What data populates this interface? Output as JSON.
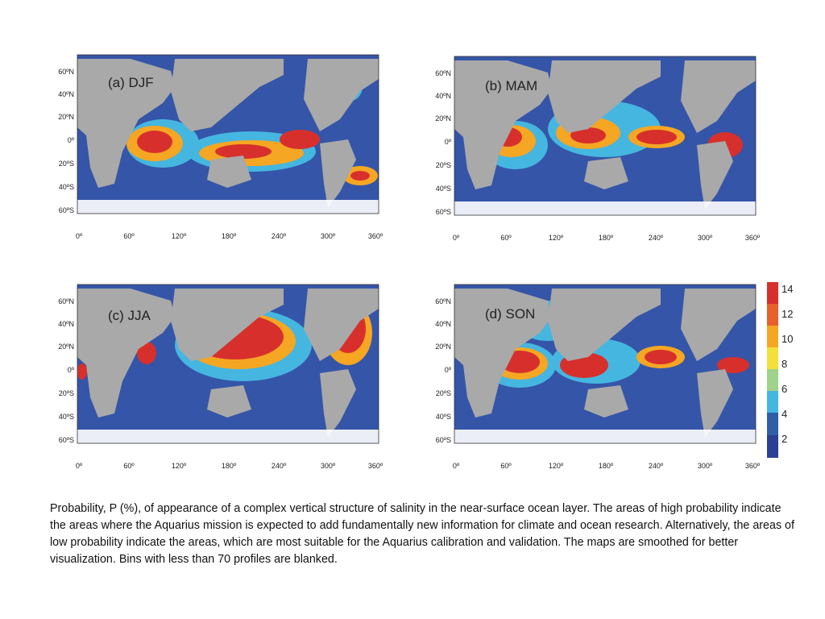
{
  "panels": [
    {
      "id": "djf",
      "title": "(a) DJF",
      "lat_labels": [
        "60ºN",
        "40ºN",
        "20ºN",
        "0º",
        "20ºS",
        "40ºS",
        "60ºS"
      ],
      "lon_labels": [
        "0º",
        "60º",
        "120º",
        "180º",
        "240º",
        "300º",
        "360º"
      ]
    },
    {
      "id": "mam",
      "title": "(b) MAM",
      "lat_labels": [
        "60ºN",
        "40ºN",
        "20ºN",
        "0º",
        "20ºS",
        "40ºS",
        "60ºS"
      ],
      "lon_labels": [
        "0º",
        "60º",
        "120º",
        "180º",
        "240º",
        "300º",
        "360º"
      ]
    },
    {
      "id": "jja",
      "title": "(c) JJA",
      "lat_labels": [
        "60ºN",
        "40ºN",
        "20ºN",
        "0º",
        "20ºS",
        "40ºS",
        "60ºS"
      ],
      "lon_labels": [
        "0º",
        "60º",
        "120º",
        "180º",
        "240º",
        "300º",
        "360º"
      ]
    },
    {
      "id": "son",
      "title": "(d) SON",
      "lat_labels": [
        "60ºN",
        "40ºN",
        "20ºN",
        "0º",
        "20ºS",
        "40ºS",
        "60ºS"
      ],
      "lon_labels": [
        "0º",
        "60º",
        "120º",
        "180º",
        "240º",
        "300º",
        "360º"
      ]
    }
  ],
  "colorbar": {
    "ticks": [
      "14",
      "12",
      "10",
      "8",
      "6",
      "4",
      "2"
    ],
    "colors": [
      "#d7302c",
      "#e8602c",
      "#f5a623",
      "#f3e03c",
      "#9fd28a",
      "#45b6e0",
      "#2f5fa8",
      "#2b3f94"
    ]
  },
  "colors": {
    "land": "#a9a9a9",
    "ocean_low": "#3555a8",
    "blank": "#ffffff"
  },
  "caption": "Probability, P (%), of appearance of a complex vertical structure of salinity in the near-surface  ocean layer. The areas of  high probability  indicate  the  areas where the Aquarius mission is expected to add fundamentally new information for climate and ocean research. Alternatively, the areas of low probability indicate the areas, which are most suitable for the Aquarius calibration and validation. The maps are smoothed for better visualization. Bins with less than 70 profiles are blanked."
}
